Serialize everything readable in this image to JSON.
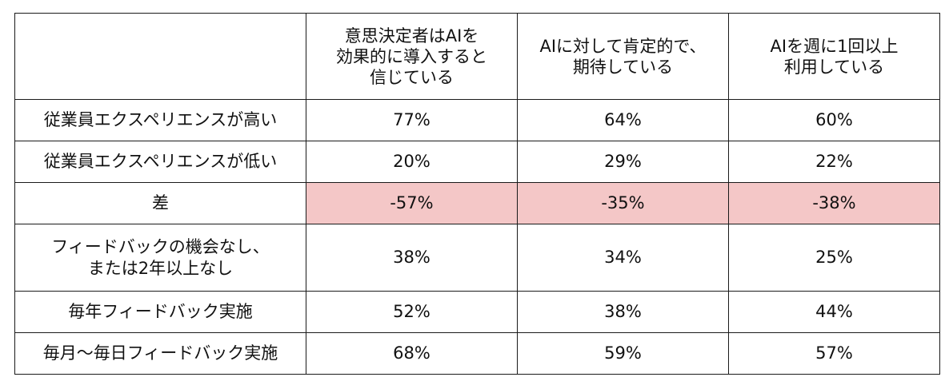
{
  "chart_data": {
    "type": "table",
    "columns": [
      {
        "lines": [
          "意思決定者はAIを",
          "効果的に導入すると",
          "信じている"
        ]
      },
      {
        "lines": [
          "AIに対して肯定的で、",
          "期待している"
        ]
      },
      {
        "lines": [
          "AIを週に1回以上",
          "利用している"
        ]
      }
    ],
    "rows": [
      {
        "label_lines": [
          "従業員エクスペリエンスが高い"
        ],
        "values": [
          "77%",
          "64%",
          "60%"
        ],
        "highlight": false
      },
      {
        "label_lines": [
          "従業員エクスペリエンスが低い"
        ],
        "values": [
          "20%",
          "29%",
          "22%"
        ],
        "highlight": false
      },
      {
        "label_lines": [
          "差"
        ],
        "values": [
          "-57%",
          "-35%",
          "-38%"
        ],
        "highlight": true
      },
      {
        "label_lines": [
          "フィードバックの機会なし、",
          "または2年以上なし"
        ],
        "values": [
          "38%",
          "34%",
          "25%"
        ],
        "highlight": false
      },
      {
        "label_lines": [
          "毎年フィードバック実施"
        ],
        "values": [
          "52%",
          "38%",
          "44%"
        ],
        "highlight": false
      },
      {
        "label_lines": [
          "毎月～毎日フィードバック実施"
        ],
        "values": [
          "68%",
          "59%",
          "57%"
        ],
        "highlight": false
      }
    ],
    "colors": {
      "highlight_row": "#f4c7c7",
      "border": "#1a1a1a"
    }
  }
}
